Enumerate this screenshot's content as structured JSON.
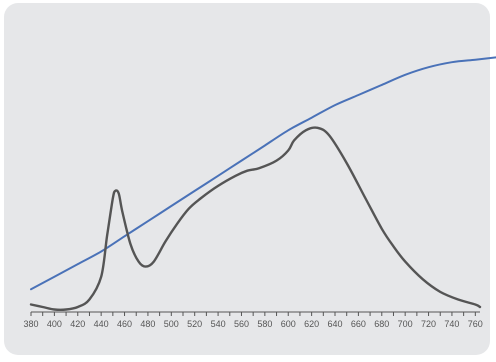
{
  "chart_data": {
    "type": "line",
    "title": "",
    "xlabel": "",
    "ylabel": "",
    "xlim": [
      380,
      764
    ],
    "ylim": [
      0,
      1.05
    ],
    "x_ticks_minor_step": 10,
    "x_tick_labels": [
      380,
      400,
      420,
      440,
      460,
      480,
      500,
      520,
      540,
      560,
      580,
      600,
      620,
      640,
      660,
      680,
      700,
      720,
      740,
      760
    ],
    "grid": false,
    "legend": "none",
    "series": [
      {
        "color": "#4a72b8",
        "points": [
          [
            380,
            0.07
          ],
          [
            400,
            0.12
          ],
          [
            420,
            0.17
          ],
          [
            440,
            0.22
          ],
          [
            460,
            0.28
          ],
          [
            480,
            0.34
          ],
          [
            500,
            0.4
          ],
          [
            520,
            0.46
          ],
          [
            540,
            0.52
          ],
          [
            560,
            0.58
          ],
          [
            580,
            0.64
          ],
          [
            600,
            0.7
          ],
          [
            620,
            0.75
          ],
          [
            640,
            0.8
          ],
          [
            660,
            0.84
          ],
          [
            680,
            0.88
          ],
          [
            700,
            0.92
          ],
          [
            720,
            0.95
          ],
          [
            740,
            0.97
          ],
          [
            760,
            0.98
          ],
          [
            780,
            0.99
          ]
        ]
      },
      {
        "color": "#555555",
        "points": [
          [
            380,
            0.01
          ],
          [
            390,
            0.0
          ],
          [
            400,
            -0.01
          ],
          [
            410,
            -0.01
          ],
          [
            420,
            0.0
          ],
          [
            430,
            0.03
          ],
          [
            440,
            0.12
          ],
          [
            445,
            0.28
          ],
          [
            450,
            0.43
          ],
          [
            452,
            0.46
          ],
          [
            455,
            0.45
          ],
          [
            458,
            0.38
          ],
          [
            465,
            0.25
          ],
          [
            472,
            0.18
          ],
          [
            478,
            0.16
          ],
          [
            485,
            0.18
          ],
          [
            495,
            0.26
          ],
          [
            505,
            0.33
          ],
          [
            515,
            0.39
          ],
          [
            525,
            0.43
          ],
          [
            540,
            0.48
          ],
          [
            555,
            0.52
          ],
          [
            565,
            0.54
          ],
          [
            575,
            0.55
          ],
          [
            590,
            0.58
          ],
          [
            600,
            0.62
          ],
          [
            605,
            0.66
          ],
          [
            615,
            0.7
          ],
          [
            625,
            0.71
          ],
          [
            635,
            0.68
          ],
          [
            650,
            0.57
          ],
          [
            665,
            0.44
          ],
          [
            680,
            0.31
          ],
          [
            690,
            0.24
          ],
          [
            700,
            0.18
          ],
          [
            715,
            0.11
          ],
          [
            730,
            0.06
          ],
          [
            745,
            0.03
          ],
          [
            760,
            0.01
          ],
          [
            764,
            0.0
          ]
        ]
      }
    ]
  }
}
